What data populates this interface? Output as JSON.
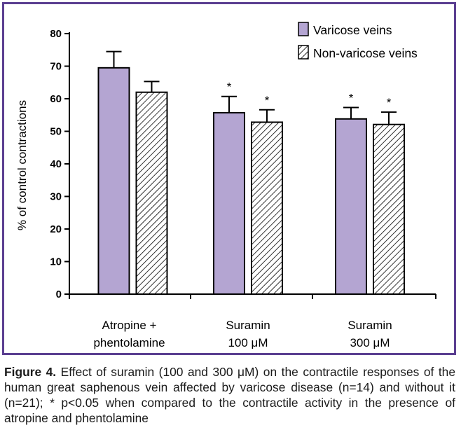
{
  "colors": {
    "varicose_fill": "#b4a5d2",
    "frame": "#5b3f91",
    "hatch": "#000000"
  },
  "chart_data": {
    "type": "bar",
    "categories": [
      [
        "Atropine +",
        "phentolamine"
      ],
      [
        "Suramin",
        "100 μM"
      ],
      [
        "Suramin",
        "300 μM"
      ]
    ],
    "series": [
      {
        "name": "Varicose veins",
        "pattern": "solid",
        "values": [
          69.5,
          55.7,
          53.8
        ],
        "errors": [
          5.0,
          5.0,
          3.5
        ],
        "significant": [
          "",
          "*",
          "*"
        ]
      },
      {
        "name": "Non-varicose veins",
        "pattern": "hatched",
        "values": [
          62.0,
          52.8,
          52.1
        ],
        "errors": [
          3.3,
          3.8,
          3.8
        ],
        "significant": [
          "",
          "*",
          "*"
        ]
      }
    ],
    "ylabel": "% of control contractions",
    "ylim": [
      0,
      80
    ],
    "yticks": [
      0,
      10,
      20,
      30,
      40,
      50,
      60,
      70,
      80
    ],
    "legend_position": "top-right",
    "grid": false
  },
  "caption": {
    "label": "Figure 4.",
    "text": " Effect of suramin (100 and 300 μM) on the contractile responses of the human great saphenous vein affected by varicose disease (n=14) and without it (n=21); * p<0.05 when compared to the contractile activity in the presence of atropine and phentolamine"
  }
}
